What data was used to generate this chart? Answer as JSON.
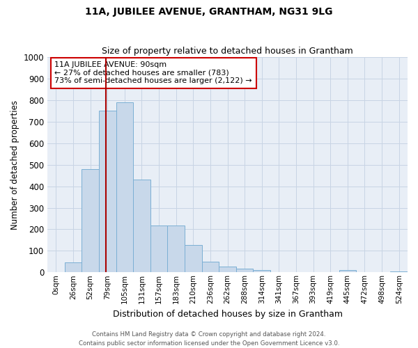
{
  "title1": "11A, JUBILEE AVENUE, GRANTHAM, NG31 9LG",
  "title2": "Size of property relative to detached houses in Grantham",
  "xlabel": "Distribution of detached houses by size in Grantham",
  "ylabel": "Number of detached properties",
  "footer1": "Contains HM Land Registry data © Crown copyright and database right 2024.",
  "footer2": "Contains public sector information licensed under the Open Government Licence v3.0.",
  "bar_labels": [
    "0sqm",
    "26sqm",
    "52sqm",
    "79sqm",
    "105sqm",
    "131sqm",
    "157sqm",
    "183sqm",
    "210sqm",
    "236sqm",
    "262sqm",
    "288sqm",
    "314sqm",
    "341sqm",
    "367sqm",
    "393sqm",
    "419sqm",
    "445sqm",
    "472sqm",
    "498sqm",
    "524sqm"
  ],
  "bar_values": [
    0,
    45,
    480,
    750,
    790,
    430,
    218,
    218,
    128,
    50,
    28,
    18,
    10,
    0,
    0,
    0,
    0,
    10,
    0,
    0,
    5
  ],
  "bar_color": "#c8d8ea",
  "bar_edgecolor": "#7bafd4",
  "grid_color": "#c8d4e4",
  "background_color": "#e8eef6",
  "annotation_text_line1": "11A JUBILEE AVENUE: 90sqm",
  "annotation_text_line2": "← 27% of detached houses are smaller (783)",
  "annotation_text_line3": "73% of semi-detached houses are larger (2,122) →",
  "property_line_color": "#aa0000",
  "ylim": [
    0,
    1000
  ],
  "yticks": [
    0,
    100,
    200,
    300,
    400,
    500,
    600,
    700,
    800,
    900,
    1000
  ]
}
